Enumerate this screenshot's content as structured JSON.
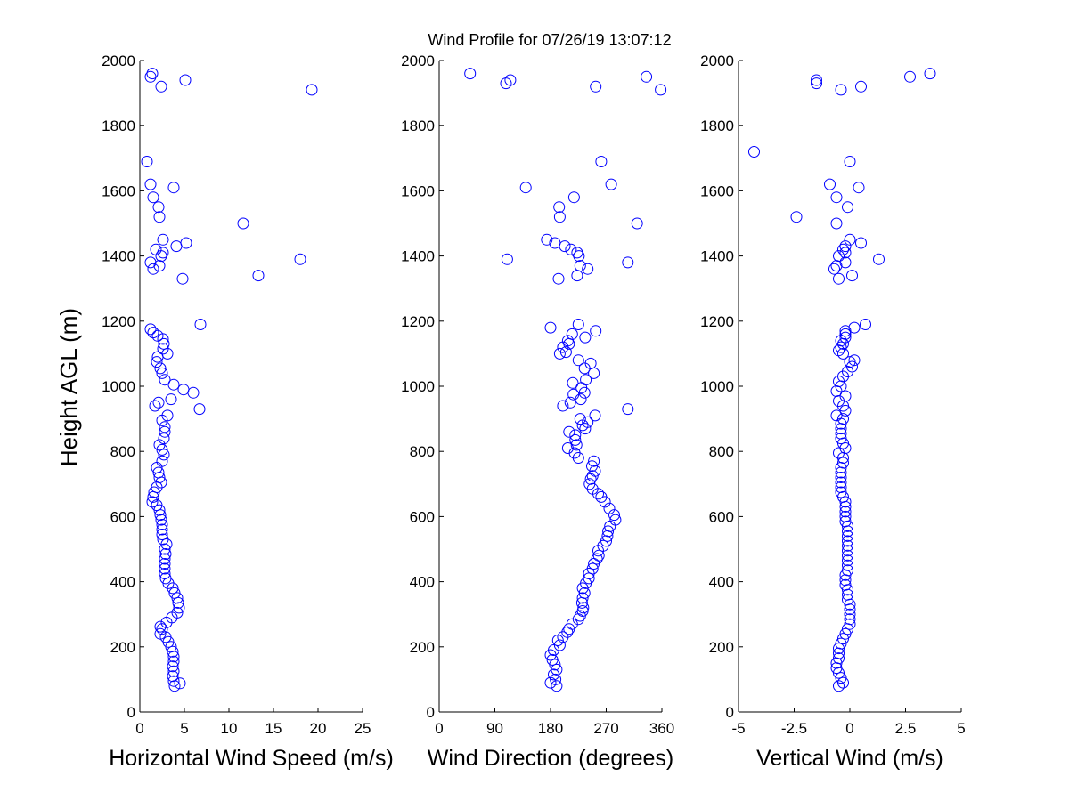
{
  "title": "Wind Profile for  07/26/19 13:07:12",
  "ylabel": "Height AGL (m)",
  "marker_color": "#0000ff",
  "chart_data": [
    {
      "type": "scatter",
      "xlabel": "Horizontal Wind Speed (m/s)",
      "xlim": [
        0,
        25
      ],
      "ylim": [
        0,
        2000
      ],
      "xticks": [
        "0",
        "5",
        "10",
        "15",
        "20",
        "25"
      ],
      "yticks": [
        "0",
        "200",
        "400",
        "600",
        "800",
        "1000",
        "1200",
        "1400",
        "1600",
        "1800",
        "2000"
      ],
      "points": [
        [
          3.9,
          80
        ],
        [
          4.5,
          88
        ],
        [
          3.8,
          95
        ],
        [
          3.7,
          110
        ],
        [
          3.8,
          125
        ],
        [
          3.7,
          140
        ],
        [
          3.8,
          155
        ],
        [
          3.8,
          170
        ],
        [
          3.7,
          185
        ],
        [
          3.5,
          200
        ],
        [
          3.2,
          215
        ],
        [
          2.9,
          230
        ],
        [
          2.3,
          240
        ],
        [
          2.5,
          255
        ],
        [
          2.3,
          262
        ],
        [
          3.0,
          275
        ],
        [
          3.6,
          290
        ],
        [
          4.2,
          305
        ],
        [
          4.4,
          320
        ],
        [
          4.3,
          335
        ],
        [
          4.2,
          350
        ],
        [
          3.9,
          365
        ],
        [
          3.7,
          380
        ],
        [
          3.2,
          395
        ],
        [
          2.9,
          410
        ],
        [
          2.8,
          425
        ],
        [
          2.8,
          440
        ],
        [
          2.8,
          455
        ],
        [
          2.8,
          470
        ],
        [
          2.9,
          485
        ],
        [
          2.8,
          500
        ],
        [
          3.0,
          515
        ],
        [
          2.6,
          530
        ],
        [
          2.5,
          545
        ],
        [
          2.5,
          560
        ],
        [
          2.5,
          575
        ],
        [
          2.4,
          590
        ],
        [
          2.3,
          605
        ],
        [
          2.2,
          620
        ],
        [
          1.9,
          635
        ],
        [
          1.4,
          645
        ],
        [
          1.5,
          660
        ],
        [
          1.6,
          675
        ],
        [
          1.9,
          690
        ],
        [
          2.4,
          705
        ],
        [
          2.2,
          720
        ],
        [
          2.1,
          735
        ],
        [
          1.9,
          750
        ],
        [
          2.5,
          770
        ],
        [
          2.7,
          790
        ],
        [
          2.5,
          805
        ],
        [
          2.2,
          820
        ],
        [
          2.7,
          840
        ],
        [
          2.8,
          860
        ],
        [
          2.8,
          875
        ],
        [
          2.5,
          895
        ],
        [
          3.1,
          910
        ],
        [
          3.5,
          960
        ],
        [
          6.7,
          930
        ],
        [
          2.1,
          950
        ],
        [
          1.7,
          940
        ],
        [
          6.0,
          980
        ],
        [
          4.9,
          990
        ],
        [
          3.8,
          1005
        ],
        [
          2.8,
          1020
        ],
        [
          2.5,
          1040
        ],
        [
          2.3,
          1055
        ],
        [
          1.9,
          1075
        ],
        [
          2.0,
          1090
        ],
        [
          3.1,
          1100
        ],
        [
          2.6,
          1115
        ],
        [
          2.7,
          1130
        ],
        [
          2.6,
          1145
        ],
        [
          2.0,
          1155
        ],
        [
          1.5,
          1165
        ],
        [
          1.2,
          1175
        ],
        [
          6.8,
          1190
        ],
        [
          4.8,
          1330
        ],
        [
          13.3,
          1340
        ],
        [
          1.5,
          1360
        ],
        [
          2.2,
          1370
        ],
        [
          1.2,
          1380
        ],
        [
          18.0,
          1390
        ],
        [
          2.4,
          1400
        ],
        [
          2.6,
          1410
        ],
        [
          1.8,
          1420
        ],
        [
          4.1,
          1430
        ],
        [
          5.2,
          1440
        ],
        [
          2.6,
          1450
        ],
        [
          11.6,
          1500
        ],
        [
          2.2,
          1520
        ],
        [
          2.1,
          1550
        ],
        [
          1.5,
          1580
        ],
        [
          3.8,
          1610
        ],
        [
          1.2,
          1620
        ],
        [
          0.8,
          1690
        ],
        [
          19.3,
          1910
        ],
        [
          2.4,
          1920
        ],
        [
          5.1,
          1940
        ],
        [
          1.2,
          1950
        ],
        [
          1.4,
          1960
        ]
      ]
    },
    {
      "type": "scatter",
      "xlabel": "Wind Direction (degrees)",
      "xlim": [
        0,
        360
      ],
      "ylim": [
        0,
        2000
      ],
      "xticks": [
        "0",
        "90",
        "180",
        "270",
        "360"
      ],
      "yticks": [
        "0",
        "200",
        "400",
        "600",
        "800",
        "1000",
        "1200",
        "1400",
        "1600",
        "1800",
        "2000"
      ],
      "points": [
        [
          190,
          80
        ],
        [
          180,
          90
        ],
        [
          188,
          100
        ],
        [
          185,
          115
        ],
        [
          190,
          130
        ],
        [
          187,
          145
        ],
        [
          183,
          160
        ],
        [
          180,
          175
        ],
        [
          185,
          190
        ],
        [
          195,
          205
        ],
        [
          192,
          220
        ],
        [
          200,
          230
        ],
        [
          207,
          245
        ],
        [
          210,
          255
        ],
        [
          215,
          270
        ],
        [
          225,
          285
        ],
        [
          228,
          295
        ],
        [
          232,
          310
        ],
        [
          233,
          320
        ],
        [
          231,
          335
        ],
        [
          232,
          350
        ],
        [
          235,
          365
        ],
        [
          232,
          380
        ],
        [
          237,
          395
        ],
        [
          242,
          410
        ],
        [
          242,
          425
        ],
        [
          248,
          440
        ],
        [
          250,
          455
        ],
        [
          255,
          470
        ],
        [
          258,
          480
        ],
        [
          257,
          495
        ],
        [
          265,
          510
        ],
        [
          270,
          525
        ],
        [
          272,
          540
        ],
        [
          273,
          555
        ],
        [
          276,
          570
        ],
        [
          285,
          590
        ],
        [
          283,
          605
        ],
        [
          275,
          625
        ],
        [
          268,
          645
        ],
        [
          262,
          660
        ],
        [
          257,
          670
        ],
        [
          248,
          685
        ],
        [
          243,
          700
        ],
        [
          245,
          715
        ],
        [
          248,
          725
        ],
        [
          252,
          740
        ],
        [
          247,
          755
        ],
        [
          250,
          770
        ],
        [
          225,
          780
        ],
        [
          219,
          795
        ],
        [
          208,
          810
        ],
        [
          222,
          820
        ],
        [
          220,
          835
        ],
        [
          220,
          850
        ],
        [
          210,
          860
        ],
        [
          236,
          870
        ],
        [
          232,
          880
        ],
        [
          240,
          890
        ],
        [
          228,
          900
        ],
        [
          252,
          910
        ],
        [
          305,
          930
        ],
        [
          200,
          940
        ],
        [
          212,
          950
        ],
        [
          229,
          960
        ],
        [
          217,
          975
        ],
        [
          235,
          980
        ],
        [
          230,
          995
        ],
        [
          216,
          1010
        ],
        [
          237,
          1020
        ],
        [
          250,
          1040
        ],
        [
          235,
          1055
        ],
        [
          245,
          1070
        ],
        [
          225,
          1080
        ],
        [
          195,
          1100
        ],
        [
          205,
          1105
        ],
        [
          200,
          1120
        ],
        [
          210,
          1130
        ],
        [
          208,
          1140
        ],
        [
          236,
          1150
        ],
        [
          215,
          1160
        ],
        [
          253,
          1170
        ],
        [
          180,
          1180
        ],
        [
          225,
          1190
        ],
        [
          193,
          1330
        ],
        [
          223,
          1340
        ],
        [
          240,
          1360
        ],
        [
          228,
          1370
        ],
        [
          305,
          1380
        ],
        [
          110,
          1390
        ],
        [
          226,
          1400
        ],
        [
          223,
          1410
        ],
        [
          213,
          1420
        ],
        [
          203,
          1430
        ],
        [
          187,
          1440
        ],
        [
          174,
          1450
        ],
        [
          320,
          1500
        ],
        [
          195,
          1520
        ],
        [
          194,
          1550
        ],
        [
          218,
          1580
        ],
        [
          140,
          1610
        ],
        [
          278,
          1620
        ],
        [
          262,
          1690
        ],
        [
          358,
          1910
        ],
        [
          253,
          1920
        ],
        [
          108,
          1930
        ],
        [
          115,
          1940
        ],
        [
          335,
          1950
        ],
        [
          50,
          1960
        ]
      ]
    },
    {
      "type": "scatter",
      "xlabel": "Vertical Wind (m/s)",
      "xlim": [
        -5,
        5
      ],
      "ylim": [
        0,
        2000
      ],
      "xticks": [
        "-5",
        "-2.5",
        "0",
        "2.5",
        "5"
      ],
      "yticks": [
        "0",
        "200",
        "400",
        "600",
        "800",
        "1000",
        "1200",
        "1400",
        "1600",
        "1800",
        "2000"
      ],
      "points": [
        [
          -0.5,
          80
        ],
        [
          -0.3,
          90
        ],
        [
          -0.4,
          105
        ],
        [
          -0.5,
          120
        ],
        [
          -0.6,
          135
        ],
        [
          -0.6,
          150
        ],
        [
          -0.5,
          165
        ],
        [
          -0.5,
          180
        ],
        [
          -0.5,
          195
        ],
        [
          -0.4,
          210
        ],
        [
          -0.3,
          225
        ],
        [
          -0.2,
          240
        ],
        [
          -0.1,
          255
        ],
        [
          0.0,
          270
        ],
        [
          0.0,
          285
        ],
        [
          0.0,
          300
        ],
        [
          0.0,
          315
        ],
        [
          0.0,
          330
        ],
        [
          -0.1,
          345
        ],
        [
          -0.1,
          360
        ],
        [
          -0.1,
          375
        ],
        [
          -0.2,
          390
        ],
        [
          -0.2,
          405
        ],
        [
          -0.2,
          420
        ],
        [
          -0.1,
          435
        ],
        [
          -0.1,
          450
        ],
        [
          -0.1,
          465
        ],
        [
          -0.1,
          480
        ],
        [
          -0.1,
          495
        ],
        [
          -0.1,
          510
        ],
        [
          -0.1,
          525
        ],
        [
          -0.1,
          540
        ],
        [
          -0.1,
          555
        ],
        [
          -0.1,
          570
        ],
        [
          -0.2,
          585
        ],
        [
          -0.2,
          600
        ],
        [
          -0.2,
          615
        ],
        [
          -0.2,
          630
        ],
        [
          -0.2,
          645
        ],
        [
          -0.3,
          660
        ],
        [
          -0.4,
          675
        ],
        [
          -0.4,
          690
        ],
        [
          -0.4,
          705
        ],
        [
          -0.4,
          720
        ],
        [
          -0.4,
          735
        ],
        [
          -0.4,
          750
        ],
        [
          -0.3,
          765
        ],
        [
          -0.3,
          780
        ],
        [
          -0.5,
          795
        ],
        [
          -0.2,
          810
        ],
        [
          -0.3,
          825
        ],
        [
          -0.4,
          840
        ],
        [
          -0.4,
          855
        ],
        [
          -0.4,
          870
        ],
        [
          -0.4,
          885
        ],
        [
          -0.3,
          900
        ],
        [
          -0.6,
          910
        ],
        [
          -0.2,
          925
        ],
        [
          -0.3,
          940
        ],
        [
          -0.5,
          955
        ],
        [
          -0.2,
          970
        ],
        [
          -0.6,
          985
        ],
        [
          -0.4,
          1000
        ],
        [
          -0.5,
          1015
        ],
        [
          -0.3,
          1030
        ],
        [
          -0.1,
          1045
        ],
        [
          0.1,
          1060
        ],
        [
          0.0,
          1075
        ],
        [
          0.2,
          1080
        ],
        [
          -0.3,
          1100
        ],
        [
          -0.5,
          1110
        ],
        [
          -0.4,
          1120
        ],
        [
          -0.3,
          1130
        ],
        [
          -0.4,
          1140
        ],
        [
          -0.2,
          1150
        ],
        [
          -0.2,
          1160
        ],
        [
          -0.2,
          1170
        ],
        [
          0.2,
          1180
        ],
        [
          0.7,
          1190
        ],
        [
          -0.5,
          1330
        ],
        [
          0.1,
          1340
        ],
        [
          -0.7,
          1360
        ],
        [
          -0.6,
          1370
        ],
        [
          -0.2,
          1380
        ],
        [
          1.3,
          1390
        ],
        [
          -0.5,
          1400
        ],
        [
          -0.2,
          1410
        ],
        [
          -0.3,
          1420
        ],
        [
          -0.2,
          1430
        ],
        [
          0.5,
          1440
        ],
        [
          0.0,
          1450
        ],
        [
          -0.6,
          1500
        ],
        [
          -2.4,
          1520
        ],
        [
          -0.1,
          1550
        ],
        [
          -0.6,
          1580
        ],
        [
          0.4,
          1610
        ],
        [
          -0.9,
          1620
        ],
        [
          0.0,
          1690
        ],
        [
          -4.3,
          1720
        ],
        [
          -0.4,
          1910
        ],
        [
          0.5,
          1920
        ],
        [
          -1.5,
          1930
        ],
        [
          -1.5,
          1940
        ],
        [
          2.7,
          1950
        ],
        [
          3.6,
          1960
        ]
      ]
    }
  ]
}
